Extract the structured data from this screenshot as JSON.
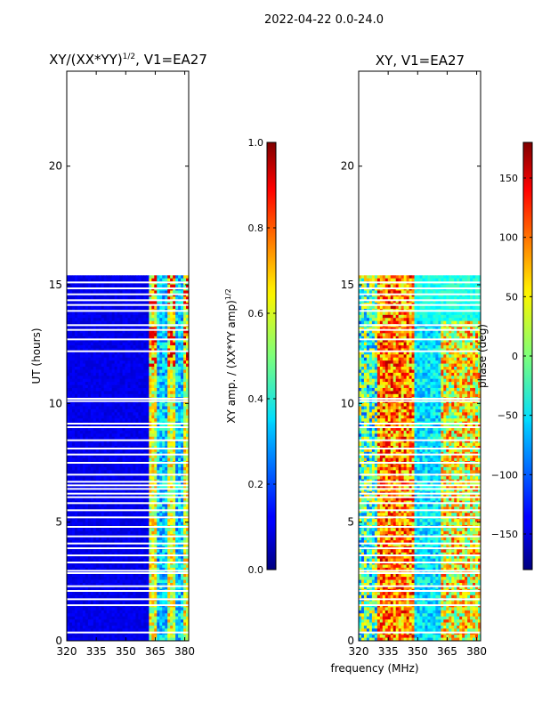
{
  "figure_title": "2022-04-22 0.0-24.0",
  "chart_data": [
    {
      "type": "heatmap",
      "title": "XY/(XX*YY)^1/2, V1=EA27",
      "title_main": "XY/(XX*YY)",
      "title_sup": "1/2",
      "title_suffix": ", V1=EA27",
      "xlabel": "",
      "ylabel": "UT (hours)",
      "xlim": [
        320,
        382
      ],
      "ylim": [
        0,
        24
      ],
      "xticks": [
        320,
        335,
        350,
        365,
        380
      ],
      "yticks": [
        0,
        5,
        10,
        15,
        20
      ],
      "data_end_hours": 15.4,
      "colorbar": {
        "label_main": "XY amp. / (XX*YY amp)",
        "label_sup": "1/2",
        "range": [
          0.0,
          1.0
        ],
        "ticks": [
          "0.0",
          "0.2",
          "0.4",
          "0.6",
          "0.8",
          "1.0"
        ],
        "tick_values": [
          0.0,
          0.2,
          0.4,
          0.6,
          0.8,
          1.0
        ]
      },
      "description_values": "low amplitude (~0.1) below 362 MHz; 0.3-0.9 across 362-380 MHz channels"
    },
    {
      "type": "heatmap",
      "title": "XY, V1=EA27",
      "xlabel": "frequency (MHz)",
      "ylabel": "",
      "xlim": [
        320,
        382
      ],
      "ylim": [
        0,
        24
      ],
      "xticks": [
        320,
        335,
        350,
        365,
        380
      ],
      "yticks": [
        0,
        5,
        10,
        15,
        20
      ],
      "data_end_hours": 15.4,
      "colorbar": {
        "label_main": "phase (deg)",
        "range": [
          -180,
          180
        ],
        "ticks": [
          "−150",
          "−100",
          "−50",
          "0",
          "50",
          "100",
          "150"
        ],
        "tick_values": [
          -150,
          -100,
          -50,
          0,
          50,
          100,
          150
        ]
      }
    }
  ],
  "colors": {
    "jet_low": "#00007f",
    "jet_high": "#7f0000",
    "gap": "#ffffff",
    "axis": "#000000"
  }
}
